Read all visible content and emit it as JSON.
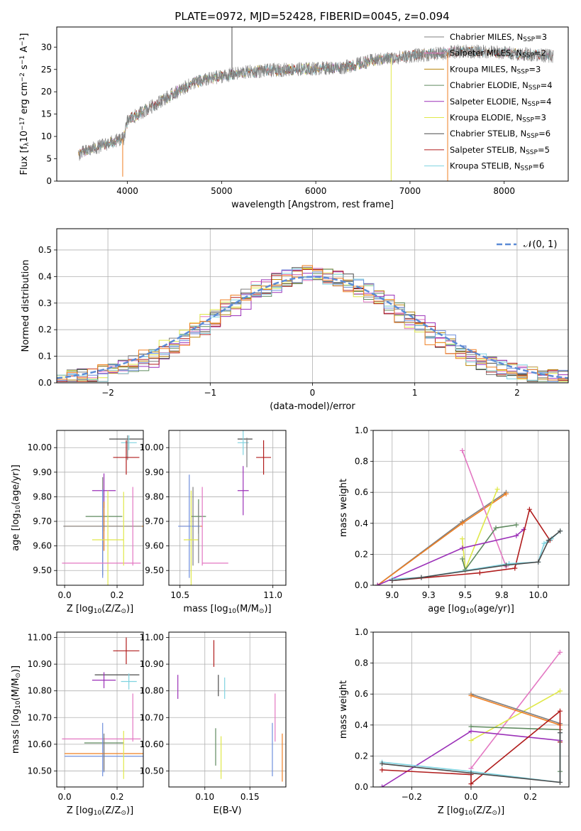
{
  "figure_title": "PLATE=0972, MJD=52428, FIBERID=0045, z=0.094",
  "colors": {
    "Chabrier MILES": "#7f7f7f",
    "Salpeter MILES": "#e377c2",
    "Kroupa MILES": "#b8860b",
    "Chabrier ELODIE": "#5f8a5f",
    "Salpeter ELODIE": "#9b30b8",
    "Kroupa ELODIE": "#e0e84a",
    "Chabrier STELIB": "#4a4a4a",
    "Salpeter STELIB": "#b01c1c",
    "Kroupa STELIB": "#7fd3e0",
    "orange": "#ef7f22",
    "blue": "#6f8fdc",
    "normal": "#5b8bd6"
  },
  "chart_data": [
    {
      "id": "spectrum",
      "type": "line",
      "title": "PLATE=0972, MJD=52428, FIBERID=0045, z=0.094",
      "xlabel": "wavelength [Angstrom, rest frame]",
      "ylabel_parts": [
        "Flux [f",
        "λ",
        "10",
        "−17",
        " erg cm",
        "−2",
        " s",
        "−1",
        " A",
        "−1",
        "]"
      ],
      "xlim": [
        3250,
        8680
      ],
      "ylim": [
        0,
        34.5
      ],
      "xticks": [
        4000,
        5000,
        6000,
        7000,
        8000
      ],
      "yticks": [
        0,
        5,
        10,
        15,
        20,
        25,
        30
      ],
      "grid": false,
      "legend_position": "right",
      "legend": [
        {
          "label": "Chabrier MILES, N",
          "sub": "SSP",
          "val": "=3"
        },
        {
          "label": "Salpeter MILES, N",
          "sub": "SSP",
          "val": "=2"
        },
        {
          "label": "Kroupa MILES, N",
          "sub": "SSP",
          "val": "=3"
        },
        {
          "label": "Chabrier ELODIE, N",
          "sub": "SSP",
          "val": "=4"
        },
        {
          "label": "Salpeter ELODIE, N",
          "sub": "SSP",
          "val": "=4"
        },
        {
          "label": "Kroupa ELODIE, N",
          "sub": "SSP",
          "val": "=3"
        },
        {
          "label": "Chabrier STELIB, N",
          "sub": "SSP",
          "val": "=6"
        },
        {
          "label": "Salpeter STELIB, N",
          "sub": "SSP",
          "val": "=5"
        },
        {
          "label": "Kroupa STELIB, N",
          "sub": "SSP",
          "val": "=6"
        }
      ],
      "continuum": [
        [
          3480,
          6
        ],
        [
          3600,
          7
        ],
        [
          3800,
          8.5
        ],
        [
          3960,
          9.5
        ],
        [
          4000,
          13.5
        ],
        [
          4200,
          16
        ],
        [
          4400,
          18.5
        ],
        [
          4700,
          22
        ],
        [
          5000,
          23.5
        ],
        [
          5300,
          24.5
        ],
        [
          5700,
          25
        ],
        [
          6000,
          25.2
        ],
        [
          6300,
          25.5
        ],
        [
          6600,
          27
        ],
        [
          7000,
          28
        ],
        [
          7300,
          28.5
        ],
        [
          7500,
          29
        ],
        [
          7800,
          29
        ],
        [
          8200,
          28.5
        ],
        [
          8500,
          28
        ]
      ],
      "spikes": [
        [
          5110,
          34.5
        ],
        [
          6800,
          0
        ],
        [
          7400,
          0
        ],
        [
          3950,
          1
        ]
      ]
    },
    {
      "id": "residuals",
      "type": "step",
      "xlabel": "(data-model)/error",
      "ylabel": "Normed distribution",
      "xlim": [
        -2.5,
        2.5
      ],
      "ylim": [
        0,
        0.58
      ],
      "xticks": [
        -2,
        -1,
        0,
        1,
        2
      ],
      "yticks": [
        0.0,
        0.1,
        0.2,
        0.3,
        0.4,
        0.5
      ],
      "grid": true,
      "legend_position": "top-right",
      "legend": "𝒩(0, 1)",
      "bin_width": 0.1
    },
    {
      "id": "z-age",
      "type": "scatter",
      "xlabel_parts": [
        "Z [log",
        "10",
        "(Z/Z",
        "⊙",
        ")]"
      ],
      "ylabel_parts": [
        "age  [log",
        "10",
        "(age/yr)]"
      ],
      "xlim": [
        -0.03,
        0.3
      ],
      "ylim": [
        9.44,
        10.07
      ],
      "xticks": [
        0.0,
        0.2
      ],
      "yticks": [
        9.5,
        9.6,
        9.7,
        9.8,
        9.9,
        10.0
      ],
      "grid": true,
      "points": [
        {
          "x": 0.255,
          "y": 10.035,
          "xerr": 0.085,
          "yerr": 0.0,
          "color": "Chabrier STELIB"
        },
        {
          "x": 0.245,
          "y": 10.02,
          "xerr": 0.03,
          "yerr": 0.03,
          "color": "Kroupa STELIB"
        },
        {
          "x": 0.24,
          "y": 10.0,
          "xerr": 0.0,
          "yerr": 0.05,
          "color": "Chabrier MILES"
        },
        {
          "x": 0.235,
          "y": 9.96,
          "xerr": 0.05,
          "yerr": 0.07,
          "color": "Salpeter STELIB"
        },
        {
          "x": 0.15,
          "y": 9.825,
          "xerr": 0.045,
          "yerr": 0.07,
          "color": "Salpeter ELODIE"
        },
        {
          "x": 0.15,
          "y": 9.72,
          "xerr": 0.07,
          "yerr": 0.06,
          "color": "Chabrier ELODIE"
        },
        {
          "x": 0.15,
          "y": 9.68,
          "xerr": 0.15,
          "yerr": 0.1,
          "color": "orange"
        },
        {
          "x": 0.145,
          "y": 9.68,
          "xerr": 0.15,
          "yerr": 0.2,
          "color": "Chabrier MILES"
        },
        {
          "x": 0.145,
          "y": 9.65,
          "xerr": 0.0,
          "yerr": 0.18,
          "color": "blue"
        },
        {
          "x": 0.165,
          "y": 9.625,
          "xerr": 0.06,
          "yerr": 0.2,
          "color": "Kroupa ELODIE"
        },
        {
          "x": 0.26,
          "y": 9.68,
          "xerr": 0.0,
          "yerr": 0.16,
          "color": "Salpeter MILES"
        },
        {
          "x": 0.14,
          "y": 9.53,
          "xerr": 0.15,
          "yerr": 0.0,
          "color": "Salpeter MILES"
        },
        {
          "x": 0.225,
          "y": 9.67,
          "xerr": 0.0,
          "yerr": 0.15,
          "color": "Kroupa ELODIE"
        }
      ]
    },
    {
      "id": "mass-age",
      "type": "scatter",
      "xlabel_parts": [
        "mass [log",
        "10",
        "(M/M",
        "⊙",
        ")]"
      ],
      "xlim": [
        10.44,
        11.07
      ],
      "ylim": [
        9.44,
        10.07
      ],
      "xticks": [
        10.5,
        11.0
      ],
      "yticks": [
        9.5,
        9.6,
        9.7,
        9.8,
        9.9,
        10.0
      ],
      "grid": true,
      "points": [
        {
          "x": 10.85,
          "y": 10.035,
          "xerr": 0.04,
          "yerr": 0.0,
          "color": "Chabrier STELIB"
        },
        {
          "x": 10.84,
          "y": 10.02,
          "xerr": 0.03,
          "yerr": 0.05,
          "color": "Kroupa STELIB"
        },
        {
          "x": 10.86,
          "y": 9.98,
          "xerr": 0.0,
          "yerr": 0.06,
          "color": "Chabrier MILES"
        },
        {
          "x": 10.95,
          "y": 9.96,
          "xerr": 0.04,
          "yerr": 0.07,
          "color": "Salpeter STELIB"
        },
        {
          "x": 10.84,
          "y": 9.825,
          "xerr": 0.03,
          "yerr": 0.1,
          "color": "Salpeter ELODIE"
        },
        {
          "x": 10.6,
          "y": 9.72,
          "xerr": 0.04,
          "yerr": 0.07,
          "color": "Chabrier ELODIE"
        },
        {
          "x": 10.56,
          "y": 9.68,
          "xerr": 0.06,
          "yerr": 0.0,
          "color": "orange"
        },
        {
          "x": 10.57,
          "y": 9.68,
          "xerr": 0.0,
          "yerr": 0.16,
          "color": "Chabrier MILES"
        },
        {
          "x": 10.55,
          "y": 9.68,
          "xerr": 0.06,
          "yerr": 0.21,
          "color": "blue"
        },
        {
          "x": 10.56,
          "y": 9.625,
          "xerr": 0.04,
          "yerr": 0.2,
          "color": "Kroupa ELODIE"
        },
        {
          "x": 10.62,
          "y": 9.68,
          "xerr": 0.0,
          "yerr": 0.16,
          "color": "Salpeter MILES"
        },
        {
          "x": 10.69,
          "y": 9.53,
          "xerr": 0.07,
          "yerr": 0.0,
          "color": "Salpeter MILES"
        },
        {
          "x": 10.6,
          "y": 9.65,
          "xerr": 0.0,
          "yerr": 0.12,
          "color": "Chabrier MILES"
        }
      ]
    },
    {
      "id": "age-weight",
      "type": "line",
      "xlabel_parts": [
        "age  [log",
        "10",
        "(age/yr)]"
      ],
      "ylabel": "mass weight",
      "xlim": [
        8.87,
        10.21
      ],
      "ylim": [
        0.0,
        1.0
      ],
      "xticks": [
        9.0,
        9.25,
        9.5,
        9.75,
        10.0
      ],
      "yticks": [
        0.0,
        0.2,
        0.4,
        0.6,
        0.8,
        1.0
      ],
      "grid": true,
      "series": [
        {
          "color": "Chabrier MILES",
          "points": [
            [
              8.9,
              0.0
            ],
            [
              9.48,
              0.41
            ],
            [
              9.78,
              0.6
            ]
          ]
        },
        {
          "color": "orange",
          "points": [
            [
              8.9,
              0.0
            ],
            [
              9.48,
              0.4
            ],
            [
              9.78,
              0.59
            ]
          ]
        },
        {
          "color": "Salpeter MILES",
          "points": [
            [
              9.48,
              0.87
            ],
            [
              9.78,
              0.12
            ]
          ]
        },
        {
          "color": "Kroupa ELODIE",
          "points": [
            [
              9.48,
              0.3
            ],
            [
              9.5,
              0.1
            ],
            [
              9.72,
              0.62
            ]
          ]
        },
        {
          "color": "Chabrier ELODIE",
          "points": [
            [
              9.48,
              0.17
            ],
            [
              9.5,
              0.1
            ],
            [
              9.71,
              0.37
            ],
            [
              9.85,
              0.39
            ]
          ]
        },
        {
          "color": "Salpeter ELODIE",
          "points": [
            [
              8.9,
              0.0
            ],
            [
              9.48,
              0.24
            ],
            [
              9.85,
              0.32
            ],
            [
              9.9,
              0.36
            ]
          ]
        },
        {
          "color": "Salpeter STELIB",
          "points": [
            [
              9.0,
              0.03
            ],
            [
              9.6,
              0.08
            ],
            [
              9.84,
              0.11
            ],
            [
              9.94,
              0.49
            ],
            [
              10.08,
              0.29
            ]
          ]
        },
        {
          "color": "Kroupa STELIB",
          "points": [
            [
              9.0,
              0.04
            ],
            [
              9.2,
              0.05
            ],
            [
              9.8,
              0.14
            ],
            [
              10.0,
              0.15
            ],
            [
              10.04,
              0.27
            ],
            [
              10.09,
              0.3
            ],
            [
              10.15,
              0.35
            ]
          ]
        },
        {
          "color": "Chabrier STELIB",
          "points": [
            [
              9.0,
              0.03
            ],
            [
              9.2,
              0.05
            ],
            [
              9.78,
              0.13
            ],
            [
              10.0,
              0.15
            ],
            [
              10.07,
              0.29
            ],
            [
              10.15,
              0.35
            ]
          ]
        }
      ]
    },
    {
      "id": "z-mass",
      "type": "scatter",
      "xlabel_parts": [
        "Z [log",
        "10",
        "(Z/Z",
        "⊙",
        ")]"
      ],
      "ylabel_parts": [
        "mass [log",
        "10",
        "(M/M",
        "⊙",
        ")]"
      ],
      "xlim": [
        -0.03,
        0.3
      ],
      "ylim": [
        10.44,
        11.02
      ],
      "xticks": [
        0.0,
        0.2
      ],
      "yticks": [
        10.5,
        10.6,
        10.7,
        10.8,
        10.9,
        11.0
      ],
      "grid": true,
      "points": [
        {
          "x": 0.235,
          "y": 10.95,
          "xerr": 0.05,
          "yerr": 0.05,
          "color": "Salpeter STELIB"
        },
        {
          "x": 0.2,
          "y": 10.86,
          "xerr": 0.085,
          "yerr": 0.0,
          "color": "Chabrier STELIB"
        },
        {
          "x": 0.15,
          "y": 10.84,
          "xerr": 0.045,
          "yerr": 0.03,
          "color": "Salpeter ELODIE"
        },
        {
          "x": 0.245,
          "y": 10.835,
          "xerr": 0.03,
          "yerr": 0.03,
          "color": "Kroupa STELIB"
        },
        {
          "x": 0.26,
          "y": 10.7,
          "xerr": 0.0,
          "yerr": 0.09,
          "color": "Salpeter MILES"
        },
        {
          "x": 0.14,
          "y": 10.62,
          "xerr": 0.15,
          "yerr": 0.0,
          "color": "Salpeter MILES"
        },
        {
          "x": 0.15,
          "y": 10.605,
          "xerr": 0.075,
          "yerr": 0.0,
          "color": "Chabrier ELODIE"
        },
        {
          "x": 0.145,
          "y": 10.58,
          "xerr": 0.0,
          "yerr": 0.1,
          "color": "blue"
        },
        {
          "x": 0.15,
          "y": 10.565,
          "xerr": 0.15,
          "yerr": 0.06,
          "color": "orange"
        },
        {
          "x": 0.15,
          "y": 10.555,
          "xerr": 0.15,
          "yerr": 0.06,
          "color": "blue"
        },
        {
          "x": 0.225,
          "y": 10.56,
          "xerr": 0.0,
          "yerr": 0.09,
          "color": "Kroupa ELODIE"
        },
        {
          "x": 0.15,
          "y": 10.57,
          "xerr": 0.0,
          "yerr": 0.07,
          "color": "Chabrier MILES"
        }
      ]
    },
    {
      "id": "ebv-mass",
      "type": "scatter",
      "xlabel": "E(B-V)",
      "xlim": [
        0.06,
        0.19
      ],
      "ylim": [
        10.44,
        11.02
      ],
      "xticks": [
        0.1,
        0.15
      ],
      "yticks": [
        10.5,
        10.6,
        10.7,
        10.8,
        10.9,
        11.0
      ],
      "grid": true,
      "points": [
        {
          "x": 0.11,
          "y": 10.94,
          "yerr": 0.05,
          "color": "Salpeter STELIB"
        },
        {
          "x": 0.07,
          "y": 10.815,
          "yerr": 0.045,
          "color": "Salpeter ELODIE"
        },
        {
          "x": 0.115,
          "y": 10.82,
          "yerr": 0.04,
          "color": "Chabrier STELIB"
        },
        {
          "x": 0.122,
          "y": 10.81,
          "yerr": 0.04,
          "color": "Kroupa STELIB"
        },
        {
          "x": 0.178,
          "y": 10.7,
          "yerr": 0.09,
          "color": "Salpeter MILES"
        },
        {
          "x": 0.112,
          "y": 10.59,
          "yerr": 0.07,
          "color": "Chabrier ELODIE"
        },
        {
          "x": 0.118,
          "y": 10.55,
          "yerr": 0.08,
          "color": "Kroupa ELODIE"
        },
        {
          "x": 0.175,
          "y": 10.58,
          "yerr": 0.1,
          "color": "blue"
        },
        {
          "x": 0.186,
          "y": 10.55,
          "yerr": 0.09,
          "color": "orange"
        }
      ]
    },
    {
      "id": "z-weight",
      "type": "line",
      "xlabel_parts": [
        "Z [log",
        "10",
        "(Z/Z",
        "⊙",
        ")]"
      ],
      "ylabel": "mass weight",
      "xlim": [
        -0.33,
        0.33
      ],
      "ylim": [
        0.0,
        1.0
      ],
      "xticks": [
        -0.2,
        0.0,
        0.2
      ],
      "yticks": [
        0.0,
        0.2,
        0.4,
        0.6,
        0.8,
        1.0
      ],
      "grid": true,
      "series": [
        {
          "color": "Salpeter MILES",
          "points": [
            [
              0.0,
              0.12
            ],
            [
              0.3,
              0.87
            ]
          ]
        },
        {
          "color": "Kroupa ELODIE",
          "points": [
            [
              0.0,
              0.3
            ],
            [
              0.3,
              0.62
            ]
          ]
        },
        {
          "color": "Chabrier MILES",
          "points": [
            [
              0.0,
              0.6
            ],
            [
              0.3,
              0.41
            ]
          ]
        },
        {
          "color": "orange",
          "points": [
            [
              0.0,
              0.59
            ],
            [
              0.3,
              0.4
            ]
          ]
        },
        {
          "color": "Chabrier ELODIE",
          "points": [
            [
              0.0,
              0.39
            ],
            [
              0.3,
              0.37
            ],
            [
              0.3,
              0.1
            ]
          ]
        },
        {
          "color": "Salpeter ELODIE",
          "points": [
            [
              -0.3,
              0.0
            ],
            [
              0.0,
              0.36
            ],
            [
              0.3,
              0.3
            ]
          ]
        },
        {
          "color": "Salpeter STELIB",
          "points": [
            [
              -0.3,
              0.11
            ],
            [
              0.0,
              0.08
            ],
            [
              0.0,
              0.02
            ],
            [
              0.3,
              0.49
            ],
            [
              0.3,
              0.29
            ]
          ]
        },
        {
          "color": "Kroupa STELIB",
          "points": [
            [
              -0.3,
              0.16
            ],
            [
              0.0,
              0.1
            ],
            [
              0.3,
              0.03
            ],
            [
              0.3,
              0.35
            ]
          ]
        },
        {
          "color": "Chabrier STELIB",
          "points": [
            [
              -0.3,
              0.15
            ],
            [
              0.0,
              0.09
            ],
            [
              0.3,
              0.03
            ],
            [
              0.3,
              0.35
            ]
          ]
        }
      ]
    }
  ]
}
